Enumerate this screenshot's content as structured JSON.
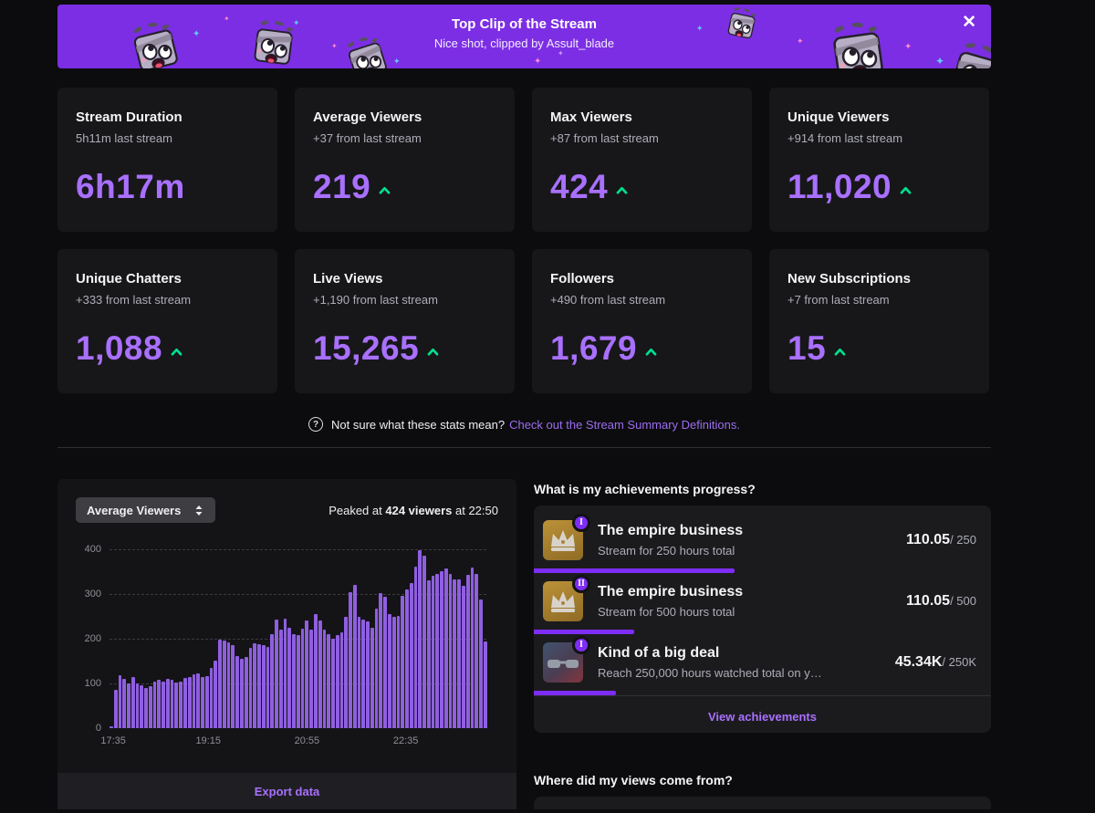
{
  "banner": {
    "title": "Top Clip of the Stream",
    "subtitle": "Nice shot, clipped by Assult_blade",
    "close_glyph": "✕"
  },
  "stats": [
    {
      "title": "Stream Duration",
      "subtitle": "5h11m last stream",
      "value": "6h17m",
      "trend": "none"
    },
    {
      "title": "Average Viewers",
      "subtitle": "+37 from last stream",
      "value": "219",
      "trend": "up"
    },
    {
      "title": "Max Viewers",
      "subtitle": "+87 from last stream",
      "value": "424",
      "trend": "up"
    },
    {
      "title": "Unique Viewers",
      "subtitle": "+914 from last stream",
      "value": "11,020",
      "trend": "up"
    },
    {
      "title": "Unique Chatters",
      "subtitle": "+333 from last stream",
      "value": "1,088",
      "trend": "up"
    },
    {
      "title": "Live Views",
      "subtitle": "+1,190 from last stream",
      "value": "15,265",
      "trend": "up"
    },
    {
      "title": "Followers",
      "subtitle": "+490 from last stream",
      "value": "1,679",
      "trend": "up"
    },
    {
      "title": "New Subscriptions",
      "subtitle": "+7 from last stream",
      "value": "15",
      "trend": "up"
    }
  ],
  "help": {
    "question_glyph": "?",
    "text": "Not sure what these stats mean?",
    "link": "Check out the Stream Summary Definitions."
  },
  "chart_section": {
    "dropdown_label": "Average Viewers",
    "peak_prefix": "Peaked at",
    "peak_bold": "424 viewers",
    "peak_suffix": "at 22:50",
    "export_label": "Export data"
  },
  "chart_data": {
    "type": "bar",
    "series_name": "Average Viewers",
    "peak": {
      "value": 424,
      "time": "22:50"
    },
    "ylim": [
      0,
      400
    ],
    "y_ticks": [
      "400",
      "300",
      "200",
      "100",
      "0"
    ],
    "x_ticks": [
      "17:35",
      "19:15",
      "20:55",
      "22:35"
    ],
    "x_tick_positions_pct": [
      1,
      26.2,
      52.4,
      78.6
    ],
    "grid": "dashed horizontal",
    "legend": "none",
    "values": [
      5,
      85,
      118,
      110,
      100,
      115,
      100,
      95,
      90,
      93,
      105,
      108,
      105,
      110,
      108,
      103,
      105,
      113,
      115,
      120,
      122,
      115,
      117,
      135,
      152,
      198,
      195,
      192,
      185,
      162,
      155,
      160,
      180,
      190,
      188,
      185,
      182,
      210,
      243,
      220,
      245,
      225,
      210,
      208,
      222,
      240,
      220,
      255,
      240,
      220,
      210,
      200,
      208,
      215,
      250,
      305,
      320,
      248,
      242,
      238,
      225,
      267,
      302,
      293,
      255,
      250,
      252,
      295,
      310,
      325,
      362,
      397,
      385,
      330,
      340,
      345,
      352,
      358,
      345,
      332,
      333,
      318,
      343,
      360,
      345,
      288,
      193
    ]
  },
  "achievements": {
    "heading": "What is my achievements progress?",
    "items": [
      {
        "badge": "I",
        "icon": "crown-icon",
        "title": "The empire business",
        "subtitle": "Stream for 250 hours total",
        "current": "110.05",
        "target_label": "/ 250",
        "progress_pct": 44
      },
      {
        "badge": "II",
        "icon": "crown-icon",
        "title": "The empire business",
        "subtitle": "Stream for 500 hours total",
        "current": "110.05",
        "target_label": "/ 500",
        "progress_pct": 22
      },
      {
        "badge": "I",
        "icon": "sunglasses-icon",
        "title": "Kind of a big deal",
        "subtitle": "Reach 250,000 hours watched total on your...",
        "current": "45.34K",
        "target_label": "/ 250K",
        "progress_pct": 18
      }
    ],
    "footer_link": "View achievements"
  },
  "views_section": {
    "heading": "Where did my views come from?"
  },
  "colors": {
    "banner_purple": "#7c2ee4",
    "accent_purple": "#a970ff",
    "bar_purple": "#8f5fe0",
    "progress_purple": "#7d2df5",
    "trend_green": "#00e08d",
    "card_bg": "#17171a",
    "page_bg": "#0c0c0e"
  }
}
